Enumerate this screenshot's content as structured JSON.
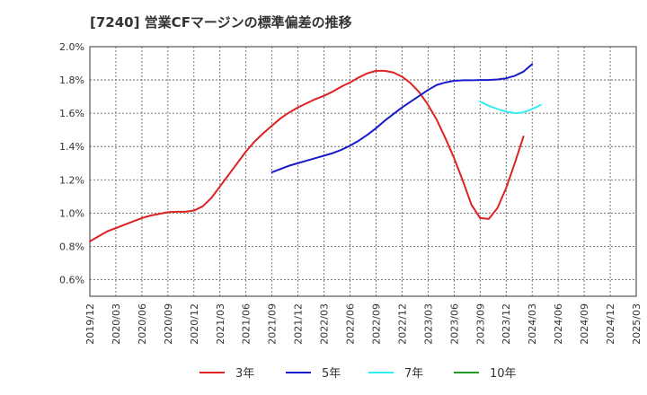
{
  "chart_data": {
    "type": "line",
    "title": "[7240]  営業CFマージンの標準偏差の推移",
    "xlabel": "",
    "ylabel": "",
    "ylim": [
      0.5,
      2.0
    ],
    "y_ticks": [
      "2.0%",
      "1.8%",
      "1.6%",
      "1.4%",
      "1.2%",
      "1.0%",
      "0.8%",
      "0.6%"
    ],
    "y_tick_values": [
      2.0,
      1.8,
      1.6,
      1.4,
      1.2,
      1.0,
      0.8,
      0.6
    ],
    "x_ticks": [
      "2019/12",
      "2020/03",
      "2020/06",
      "2020/09",
      "2020/12",
      "2021/03",
      "2021/06",
      "2021/09",
      "2021/12",
      "2022/03",
      "2022/06",
      "2022/09",
      "2022/12",
      "2023/03",
      "2023/06",
      "2023/09",
      "2023/12",
      "2024/03",
      "2024/06",
      "2024/09",
      "2024/12",
      "2025/03"
    ],
    "grid": true,
    "legend_position": "bottom",
    "series": [
      {
        "name": "3年",
        "color": "#dd2222",
        "x": [
          "2019/12",
          "2020/01",
          "2020/02",
          "2020/03",
          "2020/04",
          "2020/05",
          "2020/06",
          "2020/07",
          "2020/08",
          "2020/09",
          "2020/10",
          "2020/11",
          "2020/12",
          "2021/01",
          "2021/02",
          "2021/03",
          "2021/04",
          "2021/05",
          "2021/06",
          "2021/07",
          "2021/08",
          "2021/09",
          "2021/10",
          "2021/11",
          "2021/12",
          "2022/01",
          "2022/02",
          "2022/03",
          "2022/04",
          "2022/05",
          "2022/06",
          "2022/07",
          "2022/08",
          "2022/09",
          "2022/10",
          "2022/11",
          "2022/12",
          "2023/01",
          "2023/02",
          "2023/03",
          "2023/04",
          "2023/05",
          "2023/06",
          "2023/07",
          "2023/08",
          "2023/09",
          "2023/10",
          "2023/11",
          "2023/12",
          "2024/01",
          "2024/02",
          "2024/03"
        ],
        "values": [
          0.83,
          0.86,
          0.89,
          0.91,
          0.93,
          0.95,
          0.97,
          0.985,
          0.995,
          1.005,
          1.008,
          1.008,
          1.015,
          1.04,
          1.09,
          1.16,
          1.23,
          1.3,
          1.37,
          1.43,
          1.48,
          1.525,
          1.57,
          1.605,
          1.635,
          1.66,
          1.685,
          1.705,
          1.73,
          1.76,
          1.785,
          1.815,
          1.84,
          1.855,
          1.855,
          1.845,
          1.82,
          1.78,
          1.725,
          1.65,
          1.56,
          1.45,
          1.33,
          1.195,
          1.05,
          0.97,
          0.965,
          1.03,
          1.15,
          1.3,
          1.46,
          null
        ]
      },
      {
        "name": "5年",
        "color": "#1a1acc",
        "x": [
          "2021/09",
          "2021/10",
          "2021/11",
          "2021/12",
          "2022/01",
          "2022/02",
          "2022/03",
          "2022/04",
          "2022/05",
          "2022/06",
          "2022/07",
          "2022/08",
          "2022/09",
          "2022/10",
          "2022/11",
          "2022/12",
          "2023/01",
          "2023/02",
          "2023/03",
          "2023/04",
          "2023/05",
          "2023/06",
          "2023/07",
          "2023/08",
          "2023/09",
          "2023/10",
          "2023/11",
          "2023/12",
          "2024/01",
          "2024/02",
          "2024/03"
        ],
        "values": [
          1.245,
          1.265,
          1.285,
          1.3,
          1.315,
          1.33,
          1.345,
          1.36,
          1.38,
          1.405,
          1.435,
          1.47,
          1.51,
          1.555,
          1.595,
          1.635,
          1.67,
          1.705,
          1.74,
          1.77,
          1.785,
          1.795,
          1.798,
          1.798,
          1.8,
          1.8,
          1.803,
          1.81,
          1.825,
          1.85,
          1.895
        ]
      },
      {
        "name": "7年",
        "color": "#33eeee",
        "x": [
          "2023/09",
          "2023/10",
          "2023/11",
          "2023/12",
          "2024/01",
          "2024/02",
          "2024/03",
          "2024/04"
        ],
        "values": [
          1.67,
          1.645,
          1.625,
          1.61,
          1.6,
          1.605,
          1.625,
          1.65
        ]
      },
      {
        "name": "10年",
        "color": "#229922",
        "x": [],
        "values": []
      }
    ]
  }
}
